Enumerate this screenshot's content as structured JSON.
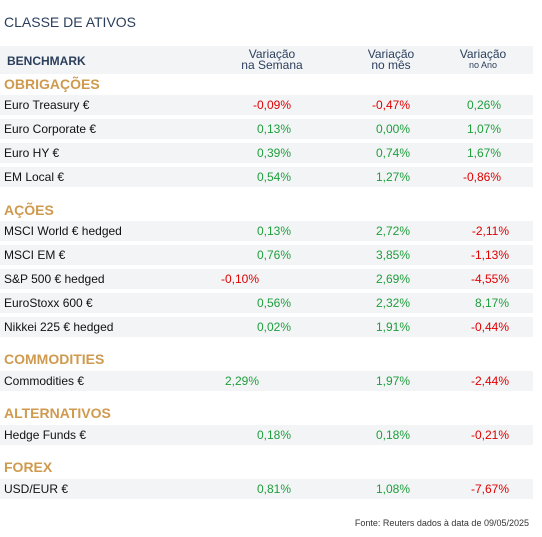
{
  "title": "CLASSE DE ATIVOS",
  "header": {
    "benchmark": "BENCHMARK",
    "col1_line1": "Variação",
    "col1_line2": "na Semana",
    "col2_line1": "Variação",
    "col2_line2": "no mês",
    "col3_line1": "Variação",
    "col3_line2": "no Ano"
  },
  "sections": [
    {
      "title": "OBRIGAÇÕES",
      "rows": [
        {
          "name": "Euro Treasury €",
          "week": "-0,09%",
          "month": "-0,47%",
          "year": "0,26%"
        },
        {
          "name": "Euro Corporate €",
          "week": "0,13%",
          "month": "0,00%",
          "year": "1,07%"
        },
        {
          "name": "Euro HY €",
          "week": "0,39%",
          "month": "0,74%",
          "year": "1,67%"
        },
        {
          "name": "EM Local €",
          "week": "0,54%",
          "month": "1,27%",
          "year": "-0,86%"
        }
      ]
    },
    {
      "title": "AÇÕES",
      "rows": [
        {
          "name": "MSCI World € hedged",
          "week": "0,13%",
          "month": "2,72%",
          "year": "-2,11%"
        },
        {
          "name": "MSCI EM €",
          "week": "0,76%",
          "month": "3,85%",
          "year": "-1,13%"
        },
        {
          "name": "S&P 500 € hedged",
          "week": "-0,10%",
          "month": "2,69%",
          "year": "-4,55%"
        },
        {
          "name": "EuroStoxx 600 €",
          "week": "0,56%",
          "month": "2,32%",
          "year": "8,17%"
        },
        {
          "name": "Nikkei 225 € hedged",
          "week": "0,02%",
          "month": "1,91%",
          "year": "-0,44%"
        }
      ]
    },
    {
      "title": "COMMODITIES",
      "rows": [
        {
          "name": "Commodities €",
          "week": "2,29%",
          "month": "1,97%",
          "year": "-2,44%"
        }
      ]
    },
    {
      "title": "ALTERNATIVOS",
      "rows": [
        {
          "name": "Hedge Funds €",
          "week": "0,18%",
          "month": "0,18%",
          "year": "-0,21%"
        }
      ]
    },
    {
      "title": "FOREX",
      "rows": [
        {
          "name": "USD/EUR €",
          "week": "0,81%",
          "month": "1,08%",
          "year": "-7,67%"
        }
      ]
    }
  ],
  "footer": "Fonte: Reuters dados à data de 09/05/2025",
  "colors": {
    "positive": "#1f9e3c",
    "negative": "#e00000",
    "section": "#cf9a4e",
    "title": "#2b3f5c"
  }
}
